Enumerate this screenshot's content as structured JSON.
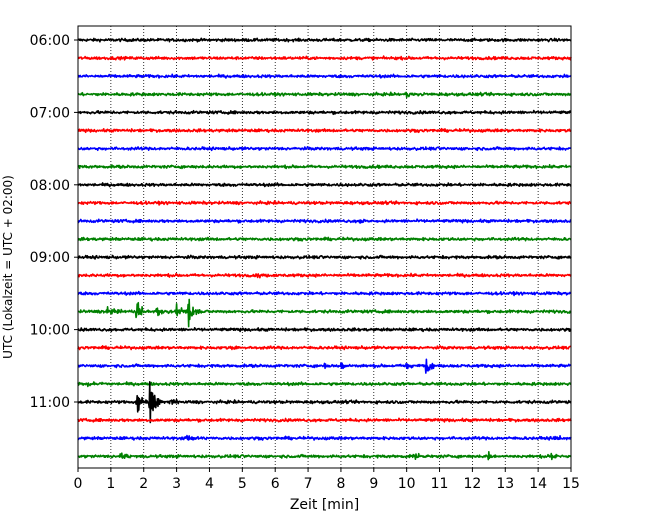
{
  "chart_data": {
    "type": "line",
    "title": "",
    "xlabel": "Zeit  [min]",
    "ylabel": "UTC (Lokalzeit = UTC + 02:00)",
    "xlim": [
      0,
      15
    ],
    "x_ticks": [
      "0",
      "1",
      "2",
      "3",
      "4",
      "5",
      "6",
      "7",
      "8",
      "9",
      "10",
      "11",
      "12",
      "13",
      "14",
      "15"
    ],
    "y_ticks": [
      "06:00",
      "07:00",
      "08:00",
      "09:00",
      "10:00",
      "11:00"
    ],
    "grid": "vertical dotted",
    "trace_colors": [
      "#000000",
      "#ff0000",
      "#0000ff",
      "#008000"
    ],
    "series": [
      {
        "start": "06:00",
        "color": "#000000",
        "events": []
      },
      {
        "start": "06:15",
        "color": "#ff0000",
        "events": []
      },
      {
        "start": "06:30",
        "color": "#0000ff",
        "events": []
      },
      {
        "start": "06:45",
        "color": "#008000",
        "events": [
          {
            "t": 10.0,
            "amp": 0.35
          }
        ]
      },
      {
        "start": "07:00",
        "color": "#000000",
        "events": []
      },
      {
        "start": "07:15",
        "color": "#ff0000",
        "events": []
      },
      {
        "start": "07:30",
        "color": "#0000ff",
        "events": []
      },
      {
        "start": "07:45",
        "color": "#008000",
        "events": []
      },
      {
        "start": "08:00",
        "color": "#000000",
        "events": []
      },
      {
        "start": "08:15",
        "color": "#ff0000",
        "events": []
      },
      {
        "start": "08:30",
        "color": "#0000ff",
        "events": [
          {
            "t": 8.6,
            "amp": 0.25
          }
        ]
      },
      {
        "start": "08:45",
        "color": "#008000",
        "events": []
      },
      {
        "start": "09:00",
        "color": "#000000",
        "events": []
      },
      {
        "start": "09:15",
        "color": "#ff0000",
        "events": [
          {
            "t": 5.5,
            "amp": 0.45
          }
        ]
      },
      {
        "start": "09:30",
        "color": "#0000ff",
        "events": []
      },
      {
        "start": "09:45",
        "color": "#008000",
        "events": [
          {
            "t": 0.9,
            "amp": 0.5
          },
          {
            "t": 1.8,
            "amp": 1.6
          },
          {
            "t": 2.4,
            "amp": 0.8
          },
          {
            "t": 3.0,
            "amp": 0.9
          },
          {
            "t": 3.35,
            "amp": 2.0
          }
        ]
      },
      {
        "start": "10:00",
        "color": "#000000",
        "events": []
      },
      {
        "start": "10:15",
        "color": "#ff0000",
        "events": [
          {
            "t": 4.7,
            "amp": 0.35
          }
        ]
      },
      {
        "start": "10:30",
        "color": "#0000ff",
        "events": [
          {
            "t": 7.5,
            "amp": 0.45
          },
          {
            "t": 8.0,
            "amp": 0.4
          },
          {
            "t": 10.0,
            "amp": 0.55
          },
          {
            "t": 10.6,
            "amp": 1.0
          }
        ]
      },
      {
        "start": "10:45",
        "color": "#008000",
        "events": [
          {
            "t": 0.3,
            "amp": 0.3
          }
        ]
      },
      {
        "start": "11:00",
        "color": "#000000",
        "events": [
          {
            "t": 1.8,
            "amp": 1.4
          },
          {
            "t": 2.2,
            "amp": 2.6
          },
          {
            "t": 2.8,
            "amp": 0.5
          }
        ]
      },
      {
        "start": "11:15",
        "color": "#ff0000",
        "events": []
      },
      {
        "start": "11:30",
        "color": "#0000ff",
        "events": [
          {
            "t": 3.3,
            "amp": 0.5
          },
          {
            "t": 14.5,
            "amp": 0.25
          }
        ]
      },
      {
        "start": "11:45",
        "color": "#008000",
        "events": [
          {
            "t": 1.3,
            "amp": 0.6
          },
          {
            "t": 10.2,
            "amp": 0.5
          },
          {
            "t": 12.5,
            "amp": 0.45
          },
          {
            "t": 14.4,
            "amp": 0.5
          }
        ]
      }
    ]
  }
}
